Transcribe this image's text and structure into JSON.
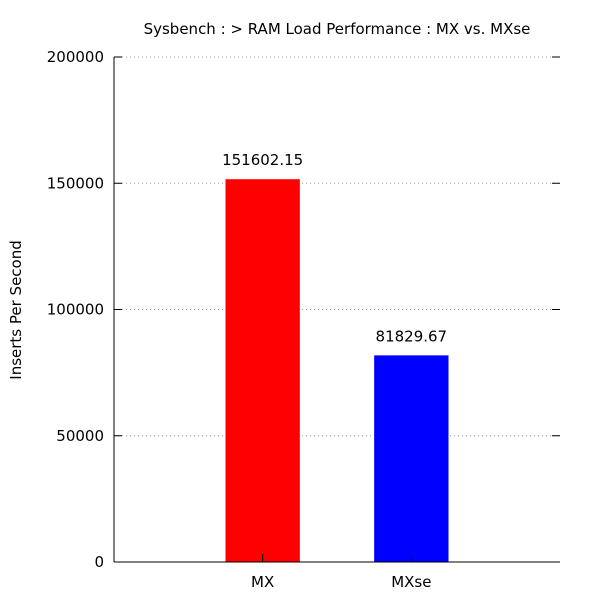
{
  "chart_data": {
    "type": "bar",
    "title": "Sysbench : > RAM Load Performance : MX vs. MXse",
    "xlabel": "",
    "ylabel": "Inserts Per Second",
    "categories": [
      "MX",
      "MXse"
    ],
    "values": [
      151602.15,
      81829.67
    ],
    "value_labels": [
      "151602.15",
      "81829.67"
    ],
    "bar_colors": [
      "#ff0000",
      "#0000ff"
    ],
    "ylim": [
      0,
      200000
    ],
    "yticks": [
      0,
      50000,
      100000,
      150000,
      200000
    ],
    "ytick_labels": [
      "0",
      "50000",
      "100000",
      "150000",
      "200000"
    ],
    "grid": "horizontal-dotted",
    "legend": "none"
  }
}
